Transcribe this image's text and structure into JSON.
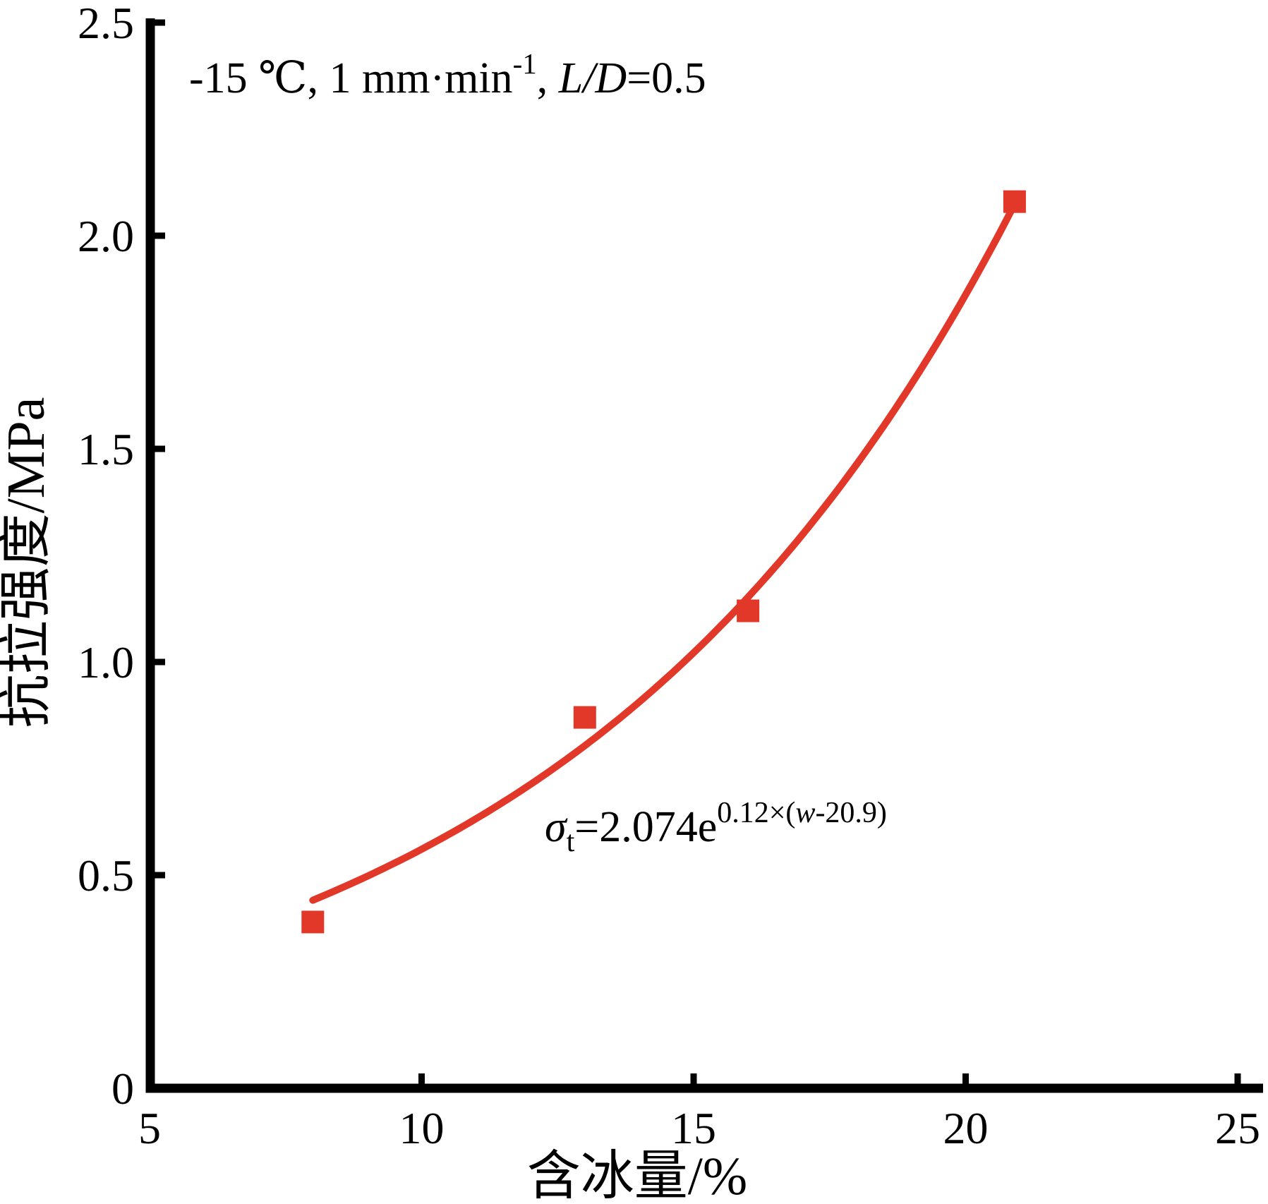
{
  "colors": {
    "accent": "#e1382a",
    "axis": "#000000",
    "background": "#ffffff"
  },
  "chart_data": {
    "type": "scatter",
    "title": "",
    "xlabel": "含冰量/%",
    "ylabel": "抗拉强度/MPa",
    "xlim": [
      5,
      25
    ],
    "ylim": [
      0,
      2.5
    ],
    "x_ticks": [
      5,
      10,
      15,
      20,
      25
    ],
    "x_tick_labels": [
      "5",
      "10",
      "15",
      "20",
      "25"
    ],
    "y_ticks": [
      0,
      0.5,
      1.0,
      1.5,
      2.0,
      2.5
    ],
    "y_tick_labels": [
      "0",
      "0.5",
      "1.0",
      "1.5",
      "2.0",
      "2.5"
    ],
    "grid": false,
    "legend": null,
    "series": [
      {
        "name": "measured-points",
        "type": "scatter",
        "marker": "square",
        "color": "#e1382a",
        "points": [
          [
            8,
            0.39
          ],
          [
            13,
            0.87
          ],
          [
            16,
            1.12
          ],
          [
            20.9,
            2.08
          ]
        ]
      },
      {
        "name": "exponential-fit",
        "type": "line",
        "color": "#e1382a",
        "fit_formula": "sigma_t = 2.074 * e^(0.12*(w-20.9))",
        "fit_params": {
          "a": 2.074,
          "b": 0.12,
          "c": 20.9
        },
        "x_range": [
          8,
          20.9
        ]
      }
    ],
    "annotation": {
      "text": "-15 ℃, 1 mm·min⁻¹, L/D=0.5",
      "parts": [
        {
          "t": "-15 ℃, 1 mm·min"
        },
        {
          "t": "-1",
          "sup": true
        },
        {
          "t": ", "
        },
        {
          "t": "L/D",
          "italic": true
        },
        {
          "t": "=0.5"
        }
      ]
    },
    "equation": {
      "text": "σt=2.074e0.12×(w-20.9)",
      "parts": [
        {
          "t": "σ",
          "italic": true
        },
        {
          "t": "t",
          "sub": true
        },
        {
          "t": "=2.074e"
        },
        {
          "t": "0.12×(",
          "sup": true
        },
        {
          "t": "w",
          "sup": true,
          "italic": true
        },
        {
          "t": "-20.9)",
          "sup": true
        }
      ]
    }
  }
}
